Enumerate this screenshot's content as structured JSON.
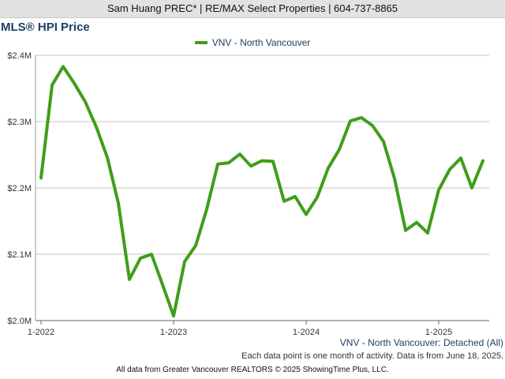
{
  "banner": {
    "text": "Sam Huang PREC* | RE/MAX Select Properties | 604-737-8865"
  },
  "chart_data": {
    "type": "line",
    "title": "MLS® HPI Price",
    "subtitle": "VNV - North Vancouver: Detached (All)",
    "note": "Each data point is one month of activity. Data is from June 18, 2025.",
    "xlabel": "",
    "ylabel": "",
    "ylim": [
      2000000,
      2400000
    ],
    "yticks": [
      {
        "value": 2000000,
        "label": "$2.0M"
      },
      {
        "value": 2100000,
        "label": "$2.1M"
      },
      {
        "value": 2200000,
        "label": "$2.2M"
      },
      {
        "value": 2300000,
        "label": "$2.3M"
      },
      {
        "value": 2400000,
        "label": "$2.4M"
      }
    ],
    "xticks": [
      "1-2022",
      "1-2023",
      "1-2024",
      "1-2025"
    ],
    "grid": true,
    "legend_position": "top-center",
    "x": [
      "2022-01",
      "2022-02",
      "2022-03",
      "2022-04",
      "2022-05",
      "2022-06",
      "2022-07",
      "2022-08",
      "2022-09",
      "2022-10",
      "2022-11",
      "2022-12",
      "2023-01",
      "2023-02",
      "2023-03",
      "2023-04",
      "2023-05",
      "2023-06",
      "2023-07",
      "2023-08",
      "2023-09",
      "2023-10",
      "2023-11",
      "2023-12",
      "2024-01",
      "2024-02",
      "2024-03",
      "2024-04",
      "2024-05",
      "2024-06",
      "2024-07",
      "2024-08",
      "2024-09",
      "2024-10",
      "2024-11",
      "2024-12",
      "2025-01",
      "2025-02",
      "2025-03",
      "2025-04",
      "2025-05"
    ],
    "series": [
      {
        "name": "VNV - North Vancouver",
        "color": "#3f9e1a",
        "values": [
          2215000,
          2355000,
          2383000,
          2358000,
          2330000,
          2292000,
          2246000,
          2177000,
          2062000,
          2094000,
          2100000,
          2054000,
          2007000,
          2089000,
          2113000,
          2168000,
          2236000,
          2238000,
          2251000,
          2233000,
          2241000,
          2240000,
          2180000,
          2187000,
          2160000,
          2186000,
          2230000,
          2258000,
          2301000,
          2306000,
          2294000,
          2270000,
          2214000,
          2136000,
          2148000,
          2132000,
          2197000,
          2228000,
          2245000,
          2200000,
          2241000
        ]
      }
    ]
  },
  "footer": {
    "text": "All data from Greater Vancouver REALTORS © 2025 ShowingTime Plus, LLC."
  }
}
